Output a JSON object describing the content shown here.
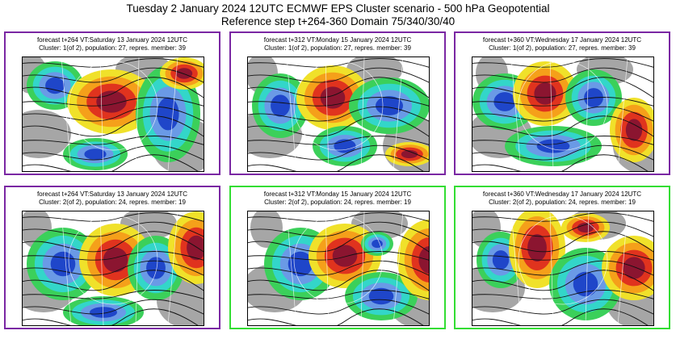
{
  "title_line1": "Tuesday 2 January 2024 12UTC ECMWF EPS Cluster scenario - 500 hPa Geopotential",
  "title_line2": "Reference step t+264-360 Domain 75/340/30/40",
  "colors": {
    "purple_border": "#7a27a3",
    "green_border": "#33dd33"
  },
  "panels": [
    {
      "line1": "forecast t+264 VT:Saturday 13 January 2024 12UTC",
      "line2": "Cluster: 1(of 2), population: 27, repres. member: 39",
      "border": "purple"
    },
    {
      "line1": "forecast t+312 VT:Monday 15 January 2024 12UTC",
      "line2": "Cluster: 1(of 2), population: 27, repres. member: 39",
      "border": "purple"
    },
    {
      "line1": "forecast t+360 VT:Wednesday 17 January 2024 12UTC",
      "line2": "Cluster: 1(of 2), population: 27, repres. member: 39",
      "border": "purple"
    },
    {
      "line1": "forecast t+264 VT:Saturday 13 January 2024 12UTC",
      "line2": "Cluster: 2(of 2), population: 24, repres. member: 19",
      "border": "purple"
    },
    {
      "line1": "forecast t+312 VT:Monday 15 January 2024 12UTC",
      "line2": "Cluster: 2(of 2), population: 24, repres. member: 19",
      "border": "green"
    },
    {
      "line1": "forecast t+360 VT:Wednesday 17 January 2024 12UTC",
      "line2": "Cluster: 2(of 2), population: 24, repres. member: 19",
      "border": "green"
    }
  ]
}
